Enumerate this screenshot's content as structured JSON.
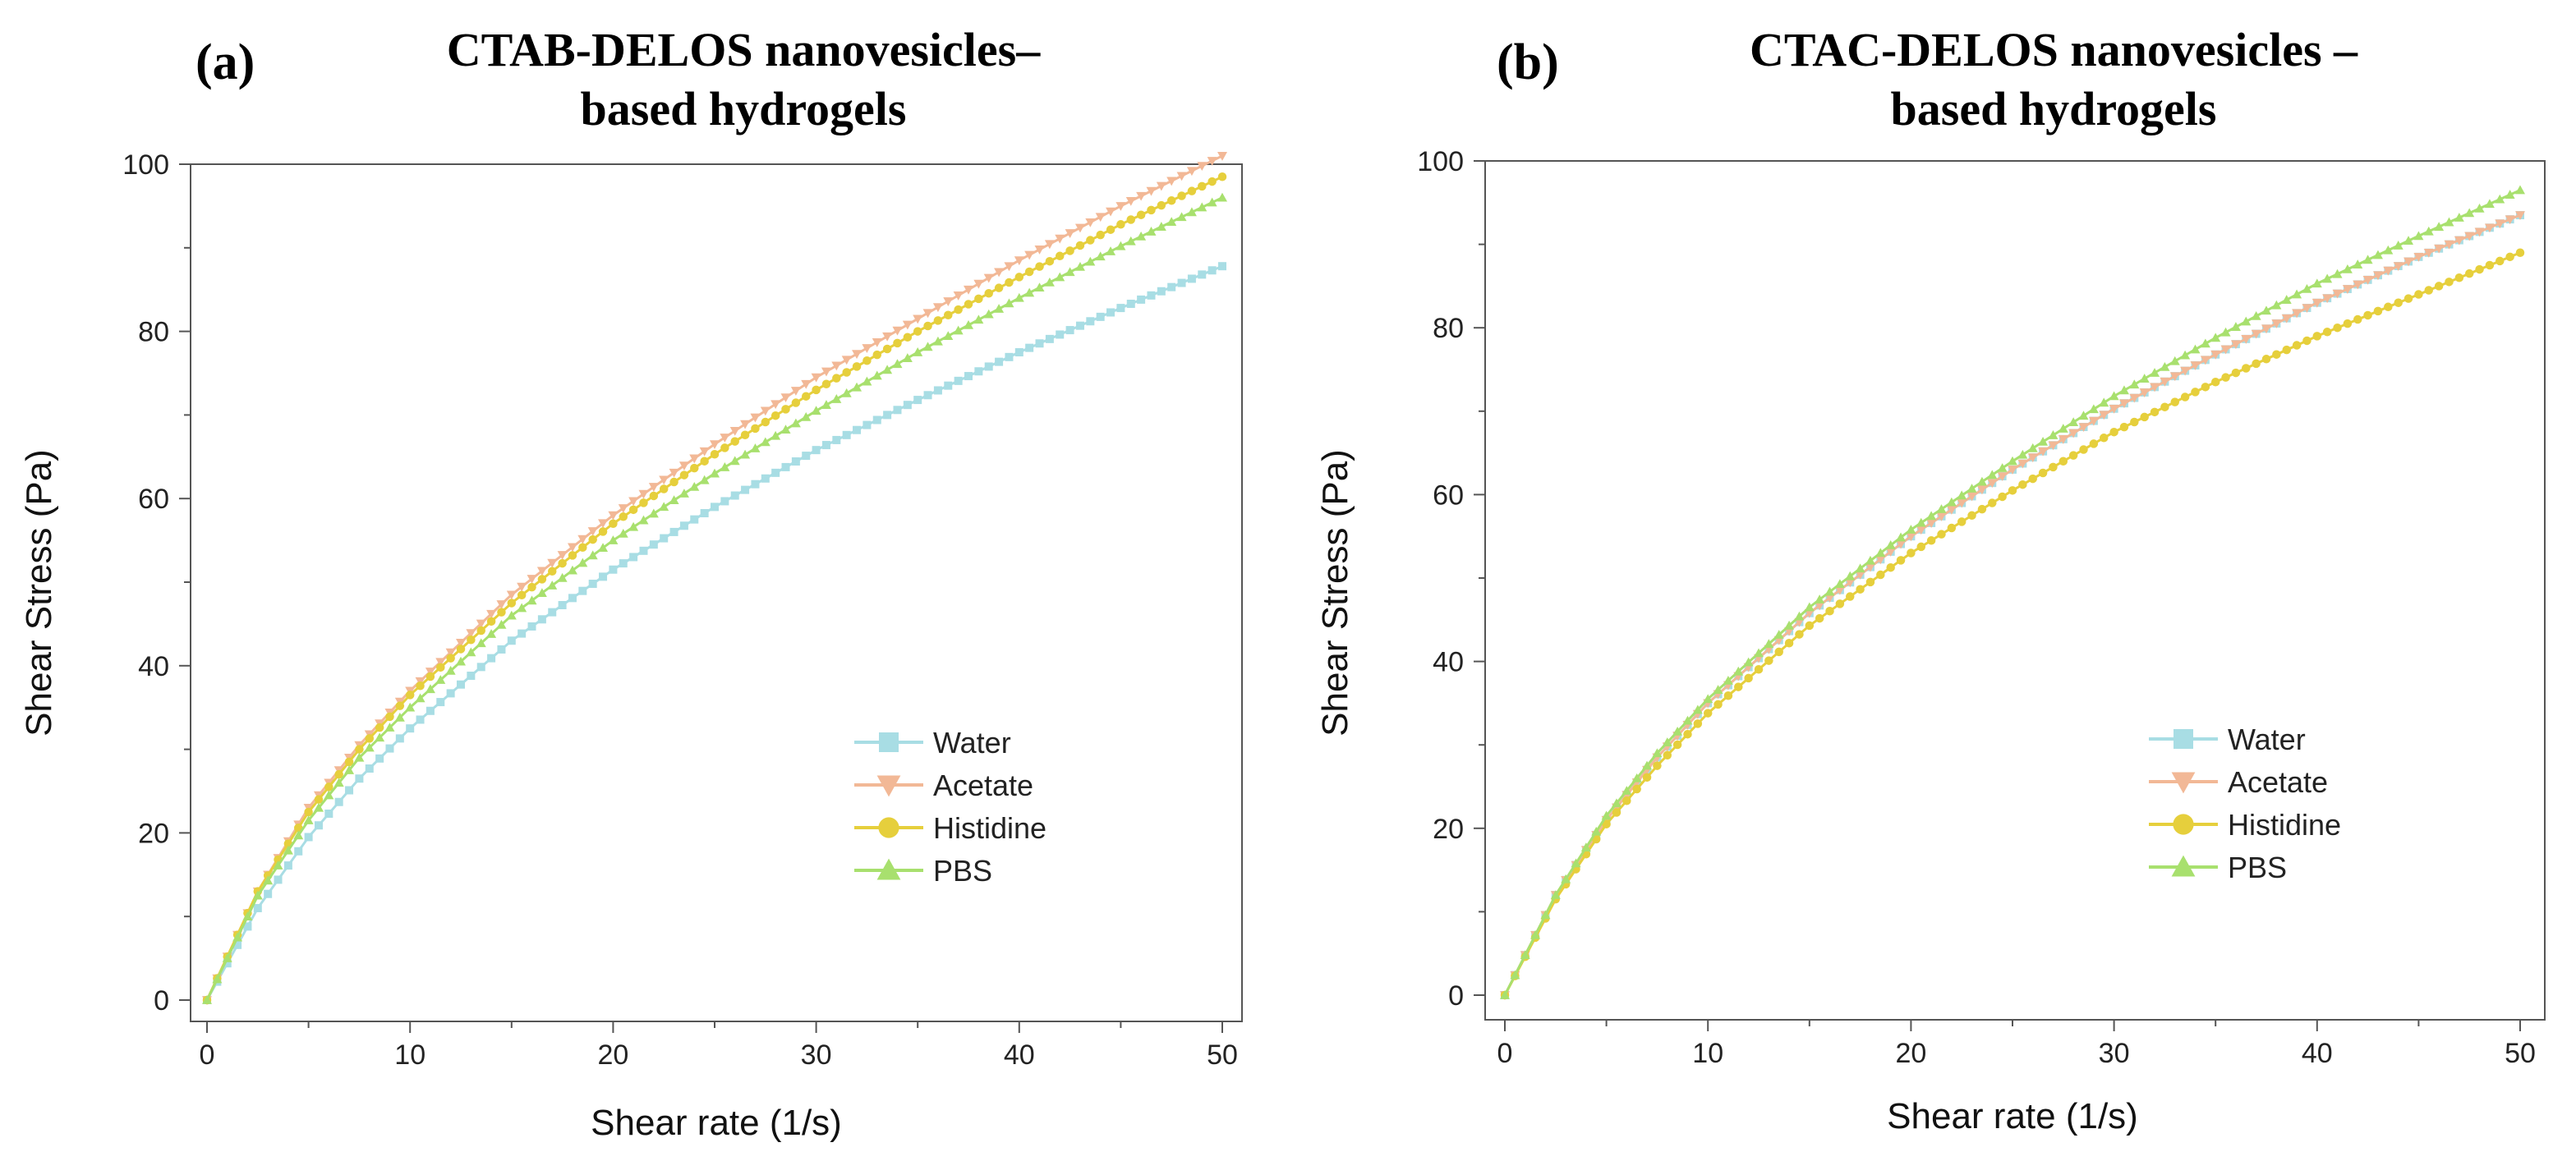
{
  "chart_data": [
    {
      "type": "line",
      "panel_label": "(a)",
      "title_lines": [
        "CTAB-DELOS nanovesicles–",
        "based hydrogels"
      ],
      "xlabel": "Shear rate (1/s)",
      "ylabel": "Shear Stress (Pa)",
      "xlim": [
        0,
        50
      ],
      "ylim": [
        0,
        100
      ],
      "xticks": [
        0,
        10,
        20,
        30,
        40,
        50
      ],
      "yticks": [
        0,
        20,
        40,
        60,
        80,
        100
      ],
      "x": [
        0,
        2.5,
        5,
        7.5,
        10,
        15,
        20,
        25,
        30,
        35,
        40,
        45,
        50
      ],
      "legend_position": "lower-right",
      "series": [
        {
          "name": "Water",
          "color": "#a8dde4",
          "marker": "square",
          "values": [
            0,
            11,
            19.5,
            26.5,
            32.5,
            43,
            51.5,
            59,
            65.8,
            71.8,
            77.5,
            82.8,
            87.8
          ]
        },
        {
          "name": "Acetate",
          "color": "#f2b896",
          "marker": "triangle-down",
          "values": [
            0,
            13,
            23,
            30.5,
            37,
            48.5,
            58,
            66.5,
            74.5,
            81.5,
            88.5,
            95,
            101
          ]
        },
        {
          "name": "Histidine",
          "color": "#e6cf3c",
          "marker": "circle",
          "values": [
            0,
            13,
            22.5,
            30,
            36.5,
            47.5,
            57,
            65.3,
            73,
            80,
            86.5,
            92.8,
            98.5
          ]
        },
        {
          "name": "PBS",
          "color": "#a8e06e",
          "marker": "triangle-up",
          "values": [
            0,
            12.5,
            21.5,
            29,
            35,
            46,
            55,
            63,
            70.5,
            77.5,
            84,
            90.2,
            96
          ]
        }
      ]
    },
    {
      "type": "line",
      "panel_label": "(b)",
      "title_lines": [
        "CTAC-DELOS nanovesicles –",
        "based hydrogels"
      ],
      "xlabel": "Shear rate (1/s)",
      "ylabel": "Shear Stress (Pa)",
      "xlim": [
        0,
        50
      ],
      "ylim": [
        0,
        100
      ],
      "xticks": [
        0,
        10,
        20,
        30,
        40,
        50
      ],
      "yticks": [
        0,
        20,
        40,
        60,
        80,
        100
      ],
      "x": [
        0,
        2.5,
        5,
        7.5,
        10,
        15,
        20,
        25,
        30,
        35,
        40,
        45,
        50
      ],
      "legend_position": "lower-right",
      "series": [
        {
          "name": "Water",
          "color": "#a8dde4",
          "marker": "square",
          "values": [
            0,
            12,
            21,
            28.5,
            35,
            45.8,
            55,
            63,
            70.3,
            76.8,
            83,
            88.5,
            93.5
          ]
        },
        {
          "name": "Acetate",
          "color": "#f2b896",
          "marker": "triangle-down",
          "values": [
            0,
            12,
            21,
            28.5,
            35,
            45.8,
            55,
            63,
            70.3,
            76.8,
            83,
            88.5,
            93.5
          ]
        },
        {
          "name": "Histidine",
          "color": "#e6cf3c",
          "marker": "circle",
          "values": [
            0,
            11.5,
            20.5,
            27.5,
            33.8,
            44.3,
            53,
            60.5,
            67.5,
            73.5,
            79,
            84,
            89
          ]
        },
        {
          "name": "PBS",
          "color": "#a8e06e",
          "marker": "triangle-up",
          "values": [
            0,
            12,
            21.5,
            29,
            35.5,
            46.5,
            55.8,
            64,
            71.8,
            78.8,
            85.3,
            91,
            96.5
          ]
        }
      ]
    }
  ]
}
